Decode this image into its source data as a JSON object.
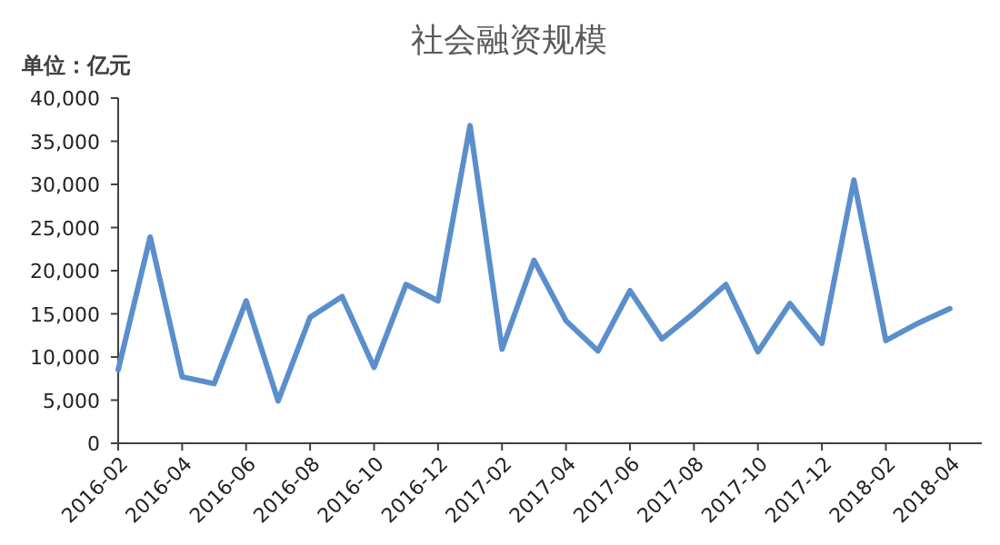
{
  "chart_data": {
    "type": "line",
    "title": "社会融资规模",
    "ylabel": "单位：亿元",
    "x": [
      "2016-02",
      "2016-03",
      "2016-04",
      "2016-05",
      "2016-06",
      "2016-07",
      "2016-08",
      "2016-09",
      "2016-10",
      "2016-11",
      "2016-12",
      "2017-01",
      "2017-02",
      "2017-03",
      "2017-04",
      "2017-05",
      "2017-06",
      "2017-07",
      "2017-08",
      "2017-09",
      "2017-10",
      "2017-11",
      "2017-12",
      "2018-01",
      "2018-02",
      "2018-03",
      "2018-04"
    ],
    "series": [
      {
        "color": "#5b8fcc",
        "values": [
          8500,
          23900,
          7700,
          6900,
          16500,
          4900,
          14600,
          17000,
          8800,
          18400,
          16500,
          36800,
          10900,
          21200,
          14200,
          10700,
          17700,
          12100,
          15100,
          18400,
          10600,
          16200,
          11600,
          30500,
          11900,
          13900,
          15600
        ]
      }
    ],
    "xlim": [
      "2016-02",
      "2018-05"
    ],
    "xticks": [
      "2016-02",
      "2016-04",
      "2016-06",
      "2016-08",
      "2016-10",
      "2016-12",
      "2017-02",
      "2017-04",
      "2017-06",
      "2017-08",
      "2017-10",
      "2017-12",
      "2018-02",
      "2018-04"
    ],
    "ylim": [
      0,
      40000
    ],
    "yticks": [
      {
        "value": 0,
        "label": "0"
      },
      {
        "value": 5000,
        "label": "5,000"
      },
      {
        "value": 10000,
        "label": "10,000"
      },
      {
        "value": 15000,
        "label": "15,000"
      },
      {
        "value": 20000,
        "label": "20,000"
      },
      {
        "value": 25000,
        "label": "25,000"
      },
      {
        "value": 30000,
        "label": "30,000"
      },
      {
        "value": 35000,
        "label": "35,000"
      },
      {
        "value": 40000,
        "label": "40,000"
      }
    ],
    "grid": false,
    "marker": "none",
    "line_style": "solid"
  }
}
